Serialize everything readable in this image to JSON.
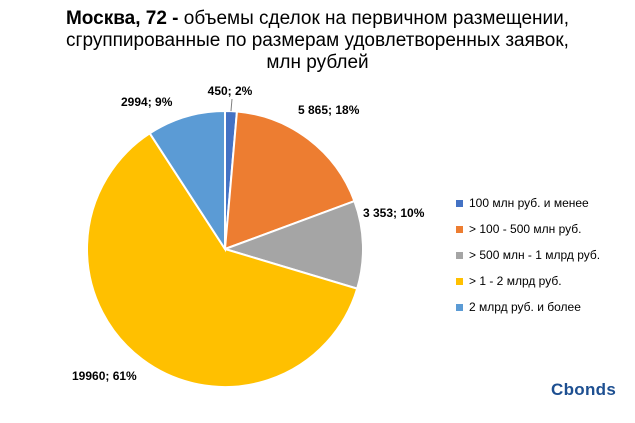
{
  "title": {
    "bold": "Москва, 72 -",
    "line1_rest": " объемы сделок на первичном размещении,",
    "line2": "сгруппированные по размерам удовлетворенных заявок,",
    "line3": "млн рублей"
  },
  "chart_data": {
    "type": "pie",
    "title": "Москва, 72 - объемы сделок на первичном размещении, сгруппированные по размерам удовлетворенных заявок, млн рублей",
    "legend_position": "right",
    "slices": [
      {
        "name": "100 млн руб. и менее",
        "value": 450,
        "percent": 2,
        "label": "450; 2%",
        "color": "#4472c4"
      },
      {
        "name": "> 100 - 500 млн руб.",
        "value": 5865,
        "percent": 18,
        "label": "5 865; 18%",
        "color": "#ed7d31"
      },
      {
        "name": "> 500 млн - 1 млрд руб.",
        "value": 3353,
        "percent": 10,
        "label": "3 353; 10%",
        "color": "#a5a5a5"
      },
      {
        "name": "> 1 - 2 млрд руб.",
        "value": 19960,
        "percent": 61,
        "label": "19960; 61%",
        "color": "#ffc000"
      },
      {
        "name": "2 млрд руб. и более",
        "value": 2994,
        "percent": 9,
        "label": "2994; 9%",
        "color": "#5b9bd5"
      }
    ]
  },
  "logo": {
    "text": "Cbonds"
  }
}
